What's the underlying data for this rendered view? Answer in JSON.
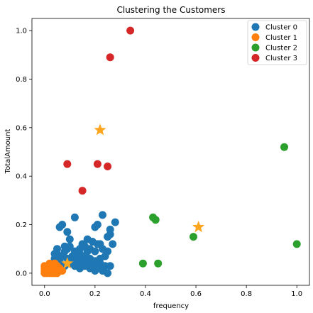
{
  "chart_data": {
    "type": "scatter",
    "title": "Clustering the Customers",
    "xlabel": "frequency",
    "ylabel": "TotalAmount",
    "xlim": [
      -0.05,
      1.05
    ],
    "ylim": [
      -0.05,
      1.05
    ],
    "xticks": [
      "0.0",
      "0.2",
      "0.4",
      "0.6",
      "0.8",
      "1.0"
    ],
    "yticks": [
      "0.0",
      "0.2",
      "0.4",
      "0.6",
      "0.8",
      "1.0"
    ],
    "grid": false,
    "legend_position": "top-right",
    "series": [
      {
        "name": "Cluster 0",
        "color": "#1f77b4",
        "points": [
          [
            0.12,
            0.23
          ],
          [
            0.16,
            0.11
          ],
          [
            0.17,
            0.14
          ],
          [
            0.2,
            0.19
          ],
          [
            0.21,
            0.2
          ],
          [
            0.22,
            0.12
          ],
          [
            0.23,
            0.24
          ],
          [
            0.25,
            0.15
          ],
          [
            0.28,
            0.21
          ],
          [
            0.26,
            0.16
          ],
          [
            0.07,
            0.2
          ],
          [
            0.06,
            0.19
          ],
          [
            0.09,
            0.17
          ],
          [
            0.1,
            0.14
          ],
          [
            0.09,
            0.1
          ],
          [
            0.12,
            0.09
          ],
          [
            0.14,
            0.08
          ],
          [
            0.16,
            0.07
          ],
          [
            0.18,
            0.06
          ],
          [
            0.2,
            0.05
          ],
          [
            0.22,
            0.04
          ],
          [
            0.24,
            0.03
          ],
          [
            0.26,
            0.03
          ],
          [
            0.19,
            0.13
          ],
          [
            0.21,
            0.12
          ],
          [
            0.23,
            0.1
          ],
          [
            0.25,
            0.09
          ],
          [
            0.24,
            0.07
          ],
          [
            0.22,
            0.06
          ],
          [
            0.15,
            0.12
          ],
          [
            0.13,
            0.06
          ],
          [
            0.11,
            0.05
          ],
          [
            0.1,
            0.04
          ],
          [
            0.12,
            0.03
          ],
          [
            0.14,
            0.02
          ],
          [
            0.16,
            0.03
          ],
          [
            0.18,
            0.02
          ],
          [
            0.2,
            0.01
          ],
          [
            0.08,
            0.09
          ],
          [
            0.07,
            0.07
          ],
          [
            0.06,
            0.05
          ],
          [
            0.05,
            0.08
          ],
          [
            0.05,
            0.05
          ],
          [
            0.04,
            0.06
          ],
          [
            0.06,
            0.02
          ],
          [
            0.08,
            0.03
          ],
          [
            0.09,
            0.06
          ],
          [
            0.11,
            0.07
          ],
          [
            0.13,
            0.04
          ],
          [
            0.15,
            0.05
          ],
          [
            0.17,
            0.04
          ],
          [
            0.19,
            0.03
          ],
          [
            0.21,
            0.02
          ],
          [
            0.23,
            0.01
          ],
          [
            0.25,
            0.0
          ],
          [
            0.04,
            0.08
          ],
          [
            0.03,
            0.04
          ],
          [
            0.05,
            0.1
          ],
          [
            0.08,
            0.11
          ],
          [
            0.1,
            0.11
          ],
          [
            0.14,
            0.1
          ],
          [
            0.17,
            0.09
          ],
          [
            0.2,
            0.09
          ],
          [
            0.18,
            0.1
          ],
          [
            0.26,
            0.18
          ],
          [
            0.27,
            0.12
          ]
        ]
      },
      {
        "name": "Cluster 1",
        "color": "#ff7f0e",
        "points": [
          [
            0.0,
            0.0
          ],
          [
            0.01,
            0.01
          ],
          [
            0.0,
            0.02
          ],
          [
            0.02,
            0.0
          ],
          [
            0.01,
            0.03
          ],
          [
            0.03,
            0.01
          ],
          [
            0.02,
            0.02
          ],
          [
            0.04,
            0.0
          ],
          [
            0.0,
            0.03
          ],
          [
            0.03,
            0.03
          ],
          [
            0.04,
            0.02
          ],
          [
            0.05,
            0.01
          ],
          [
            0.02,
            0.04
          ],
          [
            0.01,
            0.0
          ],
          [
            0.03,
            0.0
          ],
          [
            0.05,
            0.03
          ],
          [
            0.06,
            0.01
          ],
          [
            0.04,
            0.04
          ],
          [
            0.0,
            0.01
          ],
          [
            0.02,
            0.01
          ],
          [
            0.06,
            0.02
          ],
          [
            0.07,
            0.01
          ],
          [
            0.01,
            0.02
          ],
          [
            0.03,
            0.02
          ],
          [
            0.05,
            0.0
          ]
        ]
      },
      {
        "name": "Cluster 2",
        "color": "#2ca02c",
        "points": [
          [
            0.43,
            0.23
          ],
          [
            0.44,
            0.22
          ],
          [
            0.59,
            0.15
          ],
          [
            0.95,
            0.52
          ],
          [
            1.0,
            0.12
          ],
          [
            0.39,
            0.04
          ],
          [
            0.45,
            0.04
          ]
        ]
      },
      {
        "name": "Cluster 3",
        "color": "#d62728",
        "points": [
          [
            0.34,
            1.0
          ],
          [
            0.26,
            0.89
          ],
          [
            0.09,
            0.45
          ],
          [
            0.21,
            0.45
          ],
          [
            0.25,
            0.44
          ],
          [
            0.15,
            0.34
          ]
        ]
      }
    ],
    "centroids": {
      "color": "#ffa620",
      "points": [
        [
          0.22,
          0.59
        ],
        [
          0.61,
          0.19
        ],
        [
          0.09,
          0.04
        ]
      ]
    }
  }
}
